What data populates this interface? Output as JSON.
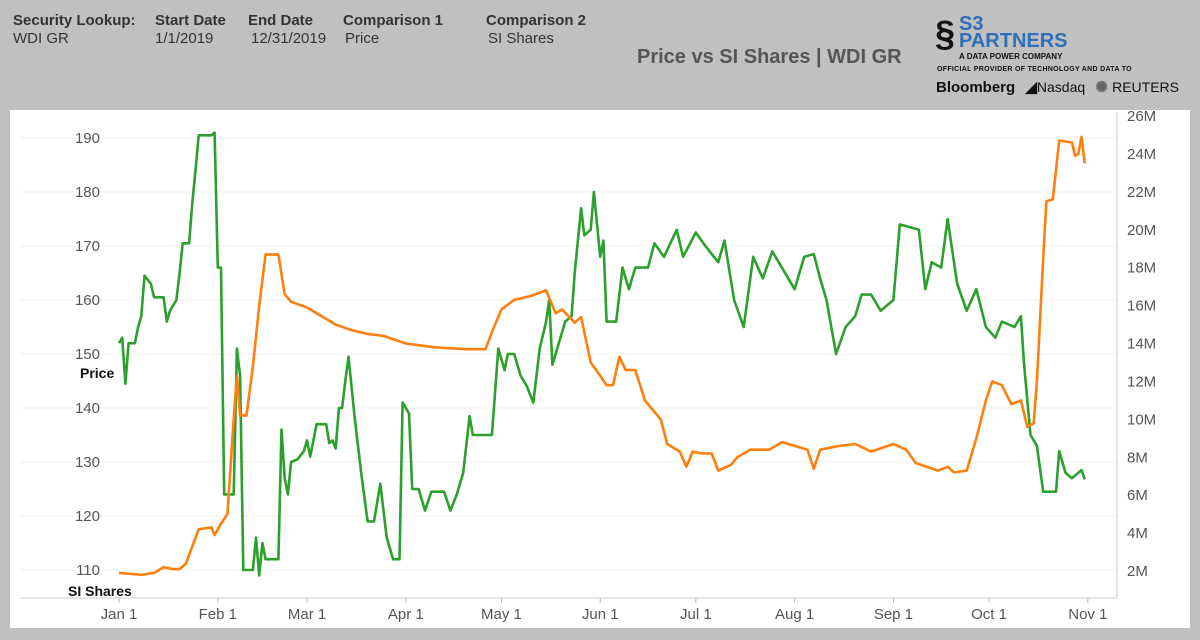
{
  "header": {
    "fields": [
      {
        "label": "Security Lookup:",
        "value": "WDI GR"
      },
      {
        "label": "Start Date",
        "value": "1/1/2019"
      },
      {
        "label": "End Date",
        "value": "12/31/2019"
      },
      {
        "label": "Comparison 1",
        "value": "Price"
      },
      {
        "label": "Comparison 2",
        "value": "SI Shares"
      }
    ]
  },
  "logo": {
    "brand": "S3 PARTNERS",
    "tagline": "A DATA POWER COMPANY",
    "provider_text": "OFFICIAL PROVIDER OF TECHNOLOGY AND DATA TO",
    "partners": [
      "Bloomberg",
      "Nasdaq",
      "REUTERS"
    ]
  },
  "chart_data": {
    "type": "line",
    "title": "Price vs SI Shares | WDI GR",
    "x_ticks": [
      "Jan 1",
      "Feb 1",
      "Mar 1",
      "Apr 1",
      "May 1",
      "Jun 1",
      "Jul 1",
      "Aug 1",
      "Sep 1",
      "Oct 1",
      "Nov 1"
    ],
    "x_tick_dates": [
      "2019-01-01",
      "2019-02-01",
      "2019-03-01",
      "2019-04-01",
      "2019-05-01",
      "2019-06-01",
      "2019-07-01",
      "2019-08-01",
      "2019-09-01",
      "2019-10-01",
      "2019-11-01"
    ],
    "y_left": {
      "ticks": [
        110,
        120,
        130,
        140,
        150,
        160,
        170,
        180,
        190
      ],
      "range": [
        107,
        195
      ]
    },
    "y_right": {
      "ticks": [
        "2M",
        "4M",
        "6M",
        "8M",
        "10M",
        "12M",
        "14M",
        "16M",
        "18M",
        "20M",
        "22M",
        "24M",
        "26M"
      ],
      "range_millions": [
        1,
        26.5
      ]
    },
    "grid": true,
    "colors": {
      "price": "#2ca02c",
      "si_shares": "#ff7f0e"
    },
    "series": [
      {
        "name": "Price",
        "axis": "left",
        "points": [
          [
            "2019-01-01",
            152
          ],
          [
            "2019-01-02",
            153
          ],
          [
            "2019-01-03",
            144.5
          ],
          [
            "2019-01-04",
            152
          ],
          [
            "2019-01-06",
            152
          ],
          [
            "2019-01-07",
            155
          ],
          [
            "2019-01-08",
            157
          ],
          [
            "2019-01-09",
            164.5
          ],
          [
            "2019-01-11",
            163
          ],
          [
            "2019-01-12",
            160.5
          ],
          [
            "2019-01-15",
            160.5
          ],
          [
            "2019-01-16",
            156
          ],
          [
            "2019-01-17",
            158
          ],
          [
            "2019-01-19",
            160
          ],
          [
            "2019-01-20",
            165
          ],
          [
            "2019-01-21",
            170.5
          ],
          [
            "2019-01-23",
            170.5
          ],
          [
            "2019-01-24",
            178
          ],
          [
            "2019-01-25",
            184
          ],
          [
            "2019-01-26",
            190.5
          ],
          [
            "2019-01-30",
            190.5
          ],
          [
            "2019-01-31",
            191
          ],
          [
            "2019-02-01",
            166
          ],
          [
            "2019-02-02",
            166
          ],
          [
            "2019-02-03",
            124
          ],
          [
            "2019-02-06",
            124
          ],
          [
            "2019-02-07",
            151
          ],
          [
            "2019-02-08",
            146
          ],
          [
            "2019-02-09",
            110
          ],
          [
            "2019-02-12",
            110
          ],
          [
            "2019-02-13",
            116
          ],
          [
            "2019-02-14",
            109
          ],
          [
            "2019-02-15",
            115
          ],
          [
            "2019-02-16",
            112
          ],
          [
            "2019-02-20",
            112
          ],
          [
            "2019-02-21",
            136
          ],
          [
            "2019-02-22",
            127
          ],
          [
            "2019-02-23",
            124
          ],
          [
            "2019-02-24",
            130
          ],
          [
            "2019-02-26",
            130.5
          ],
          [
            "2019-02-28",
            132
          ],
          [
            "2019-03-01",
            134
          ],
          [
            "2019-03-02",
            131
          ],
          [
            "2019-03-04",
            137
          ],
          [
            "2019-03-07",
            137
          ],
          [
            "2019-03-08",
            133.5
          ],
          [
            "2019-03-09",
            134
          ],
          [
            "2019-03-10",
            132.5
          ],
          [
            "2019-03-11",
            140
          ],
          [
            "2019-03-12",
            140
          ],
          [
            "2019-03-13",
            145
          ],
          [
            "2019-03-14",
            149.5
          ],
          [
            "2019-03-16",
            138
          ],
          [
            "2019-03-18",
            128
          ],
          [
            "2019-03-20",
            119
          ],
          [
            "2019-03-22",
            119
          ],
          [
            "2019-03-24",
            126
          ],
          [
            "2019-03-26",
            116
          ],
          [
            "2019-03-28",
            112
          ],
          [
            "2019-03-30",
            112
          ],
          [
            "2019-03-31",
            141
          ],
          [
            "2019-04-02",
            139
          ],
          [
            "2019-04-03",
            125
          ],
          [
            "2019-04-05",
            125
          ],
          [
            "2019-04-07",
            121
          ],
          [
            "2019-04-09",
            124.5
          ],
          [
            "2019-04-13",
            124.5
          ],
          [
            "2019-04-15",
            121
          ],
          [
            "2019-04-17",
            124
          ],
          [
            "2019-04-19",
            128
          ],
          [
            "2019-04-21",
            138.5
          ],
          [
            "2019-04-22",
            135
          ],
          [
            "2019-04-28",
            135
          ],
          [
            "2019-04-29",
            143
          ],
          [
            "2019-04-30",
            151
          ],
          [
            "2019-05-02",
            147
          ],
          [
            "2019-05-03",
            150
          ],
          [
            "2019-05-05",
            150
          ],
          [
            "2019-05-07",
            146
          ],
          [
            "2019-05-09",
            144
          ],
          [
            "2019-05-11",
            141
          ],
          [
            "2019-05-13",
            151
          ],
          [
            "2019-05-15",
            156
          ],
          [
            "2019-05-16",
            160
          ],
          [
            "2019-05-17",
            148
          ],
          [
            "2019-05-19",
            152
          ],
          [
            "2019-05-21",
            156
          ],
          [
            "2019-05-23",
            157
          ],
          [
            "2019-05-24",
            165
          ],
          [
            "2019-05-26",
            177
          ],
          [
            "2019-05-27",
            172
          ],
          [
            "2019-05-29",
            173
          ],
          [
            "2019-05-30",
            180
          ],
          [
            "2019-06-01",
            168
          ],
          [
            "2019-06-02",
            171
          ],
          [
            "2019-06-03",
            156
          ],
          [
            "2019-06-06",
            156
          ],
          [
            "2019-06-08",
            166
          ],
          [
            "2019-06-10",
            162
          ],
          [
            "2019-06-12",
            166
          ],
          [
            "2019-06-16",
            166
          ],
          [
            "2019-06-18",
            170.5
          ],
          [
            "2019-06-21",
            168
          ],
          [
            "2019-06-25",
            173
          ],
          [
            "2019-06-27",
            168
          ],
          [
            "2019-07-01",
            172.5
          ],
          [
            "2019-07-04",
            170
          ],
          [
            "2019-07-08",
            167
          ],
          [
            "2019-07-10",
            171
          ],
          [
            "2019-07-13",
            160
          ],
          [
            "2019-07-16",
            155
          ],
          [
            "2019-07-19",
            168
          ],
          [
            "2019-07-22",
            164
          ],
          [
            "2019-07-25",
            169
          ],
          [
            "2019-07-28",
            166
          ],
          [
            "2019-08-01",
            162
          ],
          [
            "2019-08-04",
            168
          ],
          [
            "2019-08-07",
            168.5
          ],
          [
            "2019-08-09",
            164
          ],
          [
            "2019-08-11",
            160
          ],
          [
            "2019-08-14",
            150
          ],
          [
            "2019-08-17",
            155
          ],
          [
            "2019-08-20",
            157
          ],
          [
            "2019-08-22",
            161
          ],
          [
            "2019-08-25",
            161
          ],
          [
            "2019-08-28",
            158
          ],
          [
            "2019-09-01",
            160
          ],
          [
            "2019-09-03",
            174
          ],
          [
            "2019-09-09",
            173
          ],
          [
            "2019-09-11",
            162
          ],
          [
            "2019-09-13",
            167
          ],
          [
            "2019-09-16",
            166
          ],
          [
            "2019-09-18",
            175
          ],
          [
            "2019-09-21",
            163
          ],
          [
            "2019-09-24",
            158
          ],
          [
            "2019-09-27",
            162
          ],
          [
            "2019-09-30",
            155
          ],
          [
            "2019-10-03",
            153
          ],
          [
            "2019-10-05",
            156
          ],
          [
            "2019-10-09",
            155
          ],
          [
            "2019-10-11",
            157
          ],
          [
            "2019-10-12",
            148
          ],
          [
            "2019-10-14",
            135
          ],
          [
            "2019-10-16",
            133
          ],
          [
            "2019-10-18",
            124.5
          ],
          [
            "2019-10-22",
            124.5
          ],
          [
            "2019-10-23",
            132
          ],
          [
            "2019-10-25",
            128
          ],
          [
            "2019-10-27",
            127
          ],
          [
            "2019-10-30",
            128.5
          ],
          [
            "2019-10-31",
            126.8
          ]
        ]
      },
      {
        "name": "SI Shares",
        "axis": "right",
        "unit": "millions",
        "points": [
          [
            "2019-01-01",
            1.9
          ],
          [
            "2019-01-08",
            1.8
          ],
          [
            "2019-01-12",
            1.9
          ],
          [
            "2019-01-15",
            2.2
          ],
          [
            "2019-01-18",
            2.1
          ],
          [
            "2019-01-20",
            2.1
          ],
          [
            "2019-01-22",
            2.4
          ],
          [
            "2019-01-24",
            3.3
          ],
          [
            "2019-01-26",
            4.2
          ],
          [
            "2019-01-30",
            4.3
          ],
          [
            "2019-01-31",
            3.9
          ],
          [
            "2019-02-02",
            4.5
          ],
          [
            "2019-02-04",
            5.0
          ],
          [
            "2019-02-06",
            10.0
          ],
          [
            "2019-02-07",
            12.3
          ],
          [
            "2019-02-08",
            10.2
          ],
          [
            "2019-02-10",
            10.2
          ],
          [
            "2019-02-12",
            12.8
          ],
          [
            "2019-02-14",
            16
          ],
          [
            "2019-02-16",
            18.7
          ],
          [
            "2019-02-20",
            18.7
          ],
          [
            "2019-02-22",
            16.6
          ],
          [
            "2019-02-24",
            16.2
          ],
          [
            "2019-03-01",
            15.9
          ],
          [
            "2019-03-05",
            15.5
          ],
          [
            "2019-03-10",
            15.0
          ],
          [
            "2019-03-15",
            14.7
          ],
          [
            "2019-03-20",
            14.5
          ],
          [
            "2019-03-25",
            14.4
          ],
          [
            "2019-04-01",
            14.0
          ],
          [
            "2019-04-10",
            13.8
          ],
          [
            "2019-04-20",
            13.7
          ],
          [
            "2019-04-26",
            13.7
          ],
          [
            "2019-04-28",
            14.6
          ],
          [
            "2019-05-01",
            15.8
          ],
          [
            "2019-05-05",
            16.3
          ],
          [
            "2019-05-10",
            16.5
          ],
          [
            "2019-05-15",
            16.8
          ],
          [
            "2019-05-18",
            15.6
          ],
          [
            "2019-05-20",
            15.8
          ],
          [
            "2019-05-24",
            15.1
          ],
          [
            "2019-05-26",
            15.4
          ],
          [
            "2019-05-29",
            13.0
          ],
          [
            "2019-06-01",
            12.3
          ],
          [
            "2019-06-03",
            11.8
          ],
          [
            "2019-06-05",
            11.8
          ],
          [
            "2019-06-07",
            13.3
          ],
          [
            "2019-06-09",
            12.6
          ],
          [
            "2019-06-12",
            12.6
          ],
          [
            "2019-06-15",
            11.0
          ],
          [
            "2019-06-20",
            10.0
          ],
          [
            "2019-06-22",
            8.7
          ],
          [
            "2019-06-26",
            8.3
          ],
          [
            "2019-06-28",
            7.5
          ],
          [
            "2019-06-30",
            8.3
          ],
          [
            "2019-07-03",
            8.2
          ],
          [
            "2019-07-06",
            8.2
          ],
          [
            "2019-07-08",
            7.3
          ],
          [
            "2019-07-12",
            7.6
          ],
          [
            "2019-07-14",
            8.0
          ],
          [
            "2019-07-18",
            8.4
          ],
          [
            "2019-07-24",
            8.4
          ],
          [
            "2019-07-28",
            8.8
          ],
          [
            "2019-08-01",
            8.6
          ],
          [
            "2019-08-05",
            8.4
          ],
          [
            "2019-08-07",
            7.4
          ],
          [
            "2019-08-09",
            8.4
          ],
          [
            "2019-08-15",
            8.6
          ],
          [
            "2019-08-20",
            8.7
          ],
          [
            "2019-08-25",
            8.3
          ],
          [
            "2019-09-01",
            8.7
          ],
          [
            "2019-09-05",
            8.4
          ],
          [
            "2019-09-08",
            7.7
          ],
          [
            "2019-09-15",
            7.3
          ],
          [
            "2019-09-18",
            7.5
          ],
          [
            "2019-09-20",
            7.2
          ],
          [
            "2019-09-24",
            7.3
          ],
          [
            "2019-09-27",
            9.0
          ],
          [
            "2019-09-30",
            11
          ],
          [
            "2019-10-02",
            12
          ],
          [
            "2019-10-05",
            11.8
          ],
          [
            "2019-10-08",
            10.8
          ],
          [
            "2019-10-11",
            11.0
          ],
          [
            "2019-10-13",
            9.6
          ],
          [
            "2019-10-15",
            9.8
          ],
          [
            "2019-10-16",
            12.0
          ],
          [
            "2019-10-18",
            18.5
          ],
          [
            "2019-10-19",
            21.5
          ],
          [
            "2019-10-21",
            21.6
          ],
          [
            "2019-10-23",
            24.7
          ],
          [
            "2019-10-27",
            24.6
          ],
          [
            "2019-10-28",
            23.9
          ],
          [
            "2019-10-29",
            24.0
          ],
          [
            "2019-10-30",
            24.9
          ],
          [
            "2019-10-31",
            23.5
          ]
        ]
      }
    ]
  }
}
